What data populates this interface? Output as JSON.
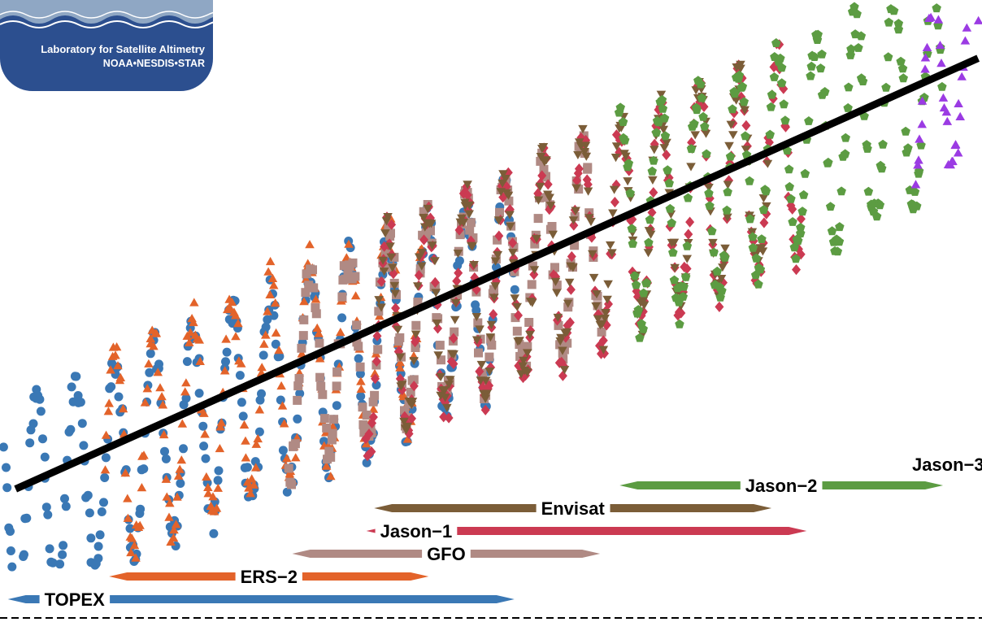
{
  "logo": {
    "line1": "Laboratory for Satellite Altimetry",
    "line2": "NOAA•NESDIS•STAR"
  },
  "colors": {
    "TOPEX": "#3a78b5",
    "ERS-2": "#e3632a",
    "GFO": "#b08a84",
    "Jason-1": "#cb3a52",
    "Envisat": "#7b5d38",
    "Jason-2": "#5c9c42",
    "Jason-3": "#9b3be3",
    "trend": "#000000"
  },
  "chart_data": {
    "type": "scatter",
    "title": "",
    "xlabel": "",
    "ylabel": "",
    "xlim": [
      1992.6,
      2017.8
    ],
    "ylim": [
      -20,
      92
    ],
    "grid": false,
    "legend": "none",
    "series": [
      {
        "name": "TOPEX",
        "marker": "circle",
        "start": 1992.7,
        "end": 2005.8,
        "mean": 4,
        "amp": 20,
        "cycle": 1.0,
        "phase": 0.3
      },
      {
        "name": "ERS-2",
        "marker": "triangle-up",
        "start": 1995.3,
        "end": 2003.5,
        "mean": 12,
        "amp": 21,
        "cycle": 1.0,
        "phase": 0.3
      },
      {
        "name": "GFO",
        "marker": "square",
        "start": 2000.0,
        "end": 2008.1,
        "mean": 28,
        "amp": 19,
        "cycle": 1.0,
        "phase": 0.3
      },
      {
        "name": "Jason-1",
        "marker": "diamond",
        "start": 2002.0,
        "end": 2013.2,
        "mean": 37,
        "amp": 21,
        "cycle": 1.0,
        "phase": 0.3
      },
      {
        "name": "Envisat",
        "marker": "triangle-down",
        "start": 2002.3,
        "end": 2012.3,
        "mean": 38,
        "amp": 20,
        "cycle": 1.0,
        "phase": 0.3
      },
      {
        "name": "Jason-2",
        "marker": "pentagon",
        "start": 2008.5,
        "end": 2016.8,
        "mean": 56,
        "amp": 21,
        "cycle": 1.0,
        "phase": 0.3
      },
      {
        "name": "Jason-3",
        "marker": "triangle-up",
        "start": 2016.1,
        "end": 2017.7,
        "mean": 74,
        "amp": 18,
        "cycle": 1.0,
        "phase": 0.3
      }
    ],
    "trend": {
      "x": [
        1993.0,
        2017.7
      ],
      "y": [
        -4,
        82
      ]
    },
    "missions": [
      {
        "name": "TOPEX",
        "start": 1992.8,
        "end": 2005.8
      },
      {
        "name": "ERS-2",
        "start": 1995.4,
        "end": 2003.6
      },
      {
        "name": "GFO",
        "start": 2000.1,
        "end": 2008.0
      },
      {
        "name": "Jason-1",
        "start": 2002.0,
        "end": 2013.3
      },
      {
        "name": "Envisat",
        "start": 2002.2,
        "end": 2012.4
      },
      {
        "name": "Jason-2",
        "start": 2008.5,
        "end": 2016.8
      },
      {
        "name": "Jason-3",
        "start": 2016.1,
        "end": 2017.8
      }
    ]
  }
}
